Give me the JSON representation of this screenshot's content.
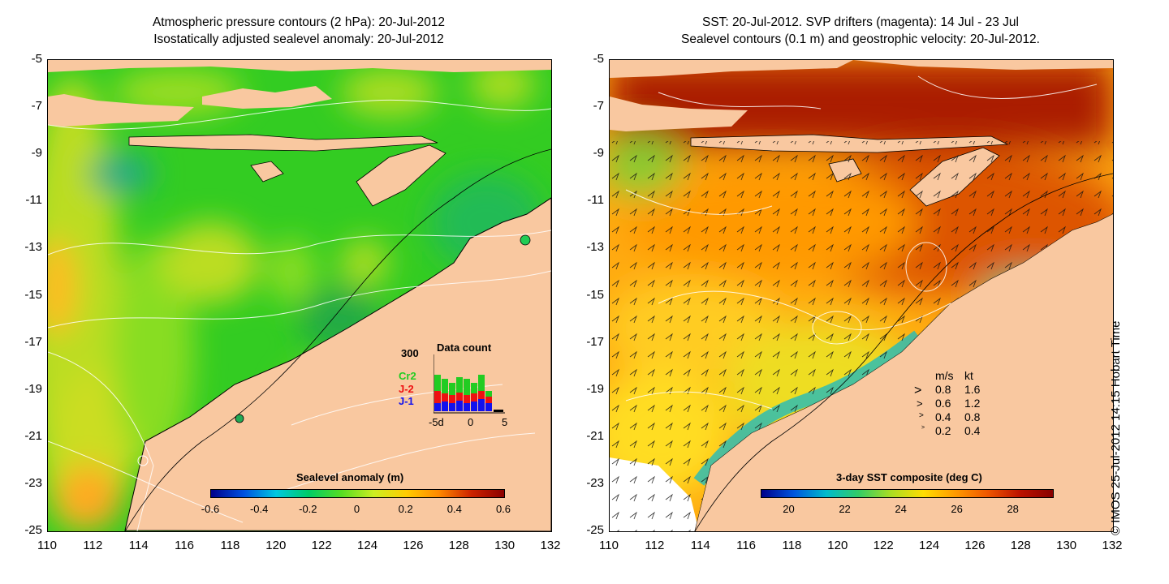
{
  "left_panel": {
    "title_line1": "Atmospheric pressure contours (2 hPa): 20-Jul-2012",
    "title_line2": "Isostatically adjusted sealevel anomaly: 20-Jul-2012",
    "colorbar_label": "Sealevel anomaly (m)",
    "colorbar_ticks": [
      "-0.6",
      "-0.4",
      "-0.2",
      "0",
      "0.2",
      "0.4",
      "0.6"
    ],
    "data_count": {
      "title": "Data count",
      "max_label": "300",
      "x_ticks": [
        "-5d",
        "0",
        "5"
      ],
      "series": [
        {
          "name": "Cr2",
          "color": "#22cc22"
        },
        {
          "name": "J-2",
          "color": "#ee1111"
        },
        {
          "name": "J-1",
          "color": "#1111ee"
        }
      ]
    }
  },
  "right_panel": {
    "title_line1": "SST: 20-Jul-2012. SVP drifters (magenta): 14 Jul - 23 Jul",
    "title_line2": "Sealevel contours (0.1 m) and geostrophic velocity: 20-Jul-2012.",
    "colorbar_label": "3-day SST composite (deg C)",
    "colorbar_ticks": [
      "20",
      "22",
      "24",
      "26",
      "28"
    ],
    "velocity_legend": {
      "header_ms": "m/s",
      "header_kt": "kt",
      "rows": [
        {
          "ms": "0.8",
          "kt": "1.6"
        },
        {
          "ms": "0.6",
          "kt": "1.2"
        },
        {
          "ms": "0.4",
          "kt": "0.8"
        },
        {
          "ms": "0.2",
          "kt": "0.4"
        }
      ]
    }
  },
  "axes": {
    "y_ticks": [
      "-5",
      "-7",
      "-9",
      "-11",
      "-13",
      "-15",
      "-17",
      "-19",
      "-21",
      "-23",
      "-25"
    ],
    "x_ticks": [
      "110",
      "112",
      "114",
      "116",
      "118",
      "120",
      "122",
      "124",
      "126",
      "128",
      "130",
      "132"
    ]
  },
  "copyright": "© IMOS 25-Jul-2012 14:15 Hobart Time",
  "colors": {
    "land": "#f9c8a0",
    "sla_scale": [
      "#00008b",
      "#0050e0",
      "#00c8e0",
      "#00cc66",
      "#55dd22",
      "#ccee22",
      "#ffcc00",
      "#ff8800",
      "#cc2200",
      "#8b0000"
    ],
    "sst_scale": [
      "#00008b",
      "#0055dd",
      "#00bbcc",
      "#33cc66",
      "#aadd22",
      "#ffdd00",
      "#ff9900",
      "#ee5500",
      "#bb1100",
      "#880000"
    ]
  }
}
